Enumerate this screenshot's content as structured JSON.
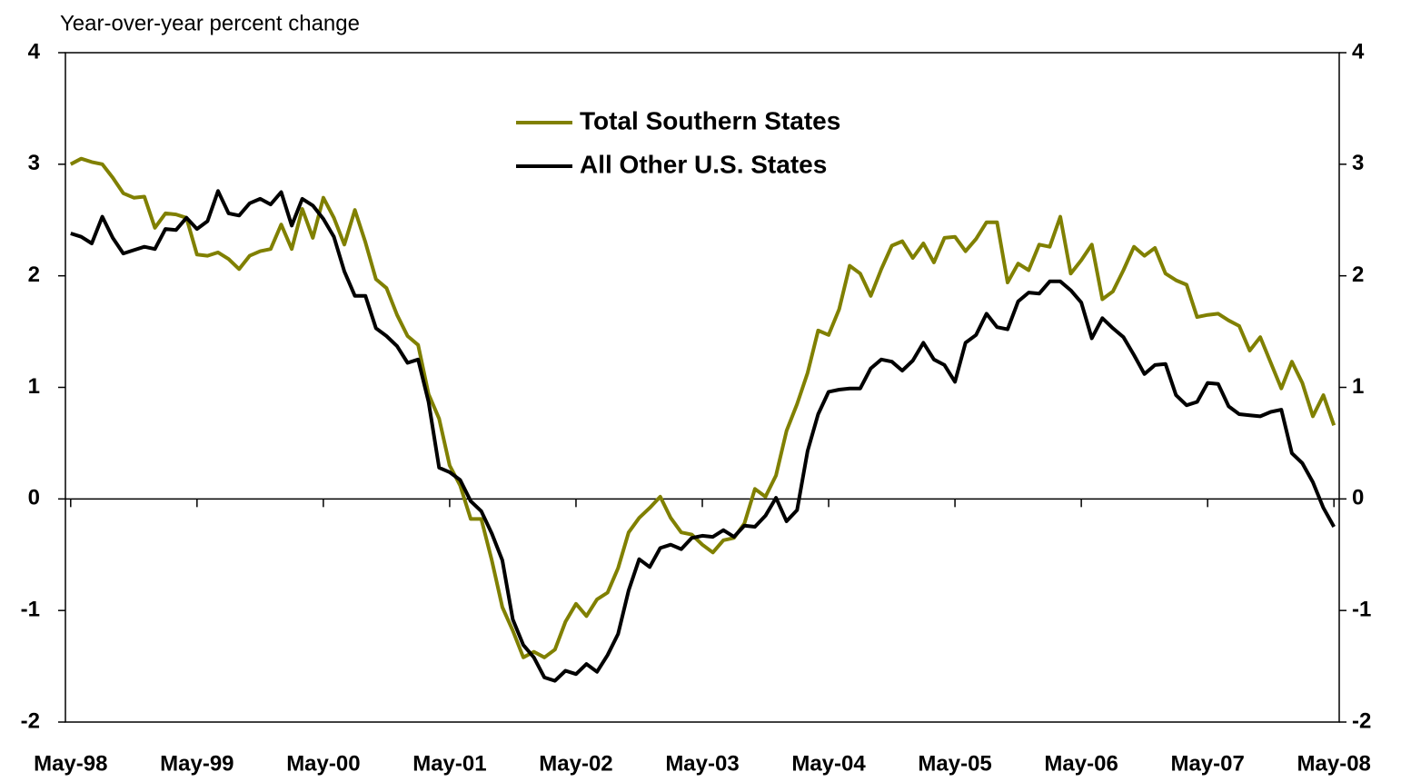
{
  "chart_data": {
    "type": "line",
    "axis_label": "Year-over-year percent change",
    "categories": [
      "May-98",
      null,
      null,
      null,
      null,
      null,
      null,
      null,
      null,
      null,
      null,
      null,
      "May-99",
      null,
      null,
      null,
      null,
      null,
      null,
      null,
      null,
      null,
      null,
      null,
      "May-00",
      null,
      null,
      null,
      null,
      null,
      null,
      null,
      null,
      null,
      null,
      null,
      "May-01",
      null,
      null,
      null,
      null,
      null,
      null,
      null,
      null,
      null,
      null,
      null,
      "May-02",
      null,
      null,
      null,
      null,
      null,
      null,
      null,
      null,
      null,
      null,
      null,
      "May-03",
      null,
      null,
      null,
      null,
      null,
      null,
      null,
      null,
      null,
      null,
      null,
      "May-04",
      null,
      null,
      null,
      null,
      null,
      null,
      null,
      null,
      null,
      null,
      null,
      "May-05",
      null,
      null,
      null,
      null,
      null,
      null,
      null,
      null,
      null,
      null,
      null,
      "May-06",
      null,
      null,
      null,
      null,
      null,
      null,
      null,
      null,
      null,
      null,
      null,
      "May-07",
      null,
      null,
      null,
      null,
      null,
      null,
      null,
      null,
      null,
      null,
      null,
      "May-08"
    ],
    "series": [
      {
        "name": "Total Southern States",
        "color": "#808000",
        "values": [
          3.0,
          3.05,
          3.02,
          3.0,
          2.88,
          2.74,
          2.7,
          2.71,
          2.43,
          2.56,
          2.55,
          2.52,
          2.19,
          2.18,
          2.21,
          2.15,
          2.06,
          2.18,
          2.22,
          2.24,
          2.46,
          2.24,
          2.6,
          2.34,
          2.7,
          2.52,
          2.28,
          2.59,
          2.3,
          1.97,
          1.89,
          1.65,
          1.46,
          1.38,
          0.94,
          0.72,
          0.3,
          0.12,
          -0.18,
          -0.18,
          -0.55,
          -0.97,
          -1.18,
          -1.42,
          -1.37,
          -1.42,
          -1.35,
          -1.1,
          -0.94,
          -1.05,
          -0.9,
          -0.84,
          -0.62,
          -0.3,
          -0.17,
          -0.08,
          0.02,
          -0.17,
          -0.3,
          -0.32,
          -0.41,
          -0.48,
          -0.37,
          -0.35,
          -0.22,
          0.09,
          0.02,
          0.21,
          0.61,
          0.85,
          1.13,
          1.51,
          1.47,
          1.7,
          2.09,
          2.02,
          1.82,
          2.06,
          2.27,
          2.31,
          2.16,
          2.29,
          2.12,
          2.34,
          2.35,
          2.22,
          2.33,
          2.48,
          2.48,
          1.94,
          2.11,
          2.05,
          2.28,
          2.26,
          2.53,
          2.02,
          2.14,
          2.28,
          1.79,
          1.86,
          2.05,
          2.26,
          2.18,
          2.25,
          2.02,
          1.96,
          1.92,
          1.63,
          1.65,
          1.66,
          1.6,
          1.55,
          1.33,
          1.45,
          1.22,
          0.99,
          1.23,
          1.04,
          0.74,
          0.93,
          0.66
        ]
      },
      {
        "name": "All Other U.S. States",
        "color": "#000000",
        "values": [
          2.38,
          2.35,
          2.29,
          2.53,
          2.34,
          2.2,
          2.23,
          2.26,
          2.24,
          2.42,
          2.41,
          2.52,
          2.42,
          2.49,
          2.76,
          2.56,
          2.54,
          2.65,
          2.69,
          2.64,
          2.75,
          2.45,
          2.69,
          2.63,
          2.51,
          2.35,
          2.04,
          1.82,
          1.82,
          1.53,
          1.46,
          1.37,
          1.22,
          1.25,
          0.87,
          0.28,
          0.24,
          0.17,
          -0.02,
          -0.11,
          -0.31,
          -0.55,
          -1.08,
          -1.31,
          -1.42,
          -1.6,
          -1.63,
          -1.54,
          -1.57,
          -1.48,
          -1.55,
          -1.4,
          -1.21,
          -0.82,
          -0.54,
          -0.61,
          -0.44,
          -0.41,
          -0.45,
          -0.35,
          -0.33,
          -0.34,
          -0.28,
          -0.34,
          -0.24,
          -0.25,
          -0.15,
          0.01,
          -0.2,
          -0.1,
          0.43,
          0.76,
          0.96,
          0.98,
          0.99,
          0.99,
          1.17,
          1.25,
          1.23,
          1.15,
          1.24,
          1.4,
          1.25,
          1.2,
          1.05,
          1.4,
          1.47,
          1.66,
          1.54,
          1.52,
          1.77,
          1.85,
          1.84,
          1.95,
          1.95,
          1.87,
          1.76,
          1.44,
          1.62,
          1.53,
          1.45,
          1.29,
          1.12,
          1.2,
          1.21,
          0.93,
          0.84,
          0.87,
          1.04,
          1.03,
          0.83,
          0.76,
          0.75,
          0.74,
          0.78,
          0.8,
          0.41,
          0.32,
          0.15,
          -0.08,
          -0.25
        ]
      }
    ],
    "ylim": [
      -2,
      4
    ],
    "yticks": [
      -2,
      -1,
      0,
      1,
      2,
      3,
      4
    ],
    "y2lim": [
      -2,
      4
    ],
    "y2ticks": [
      -2,
      -1,
      0,
      1,
      2,
      3,
      4
    ],
    "legend": "top"
  }
}
